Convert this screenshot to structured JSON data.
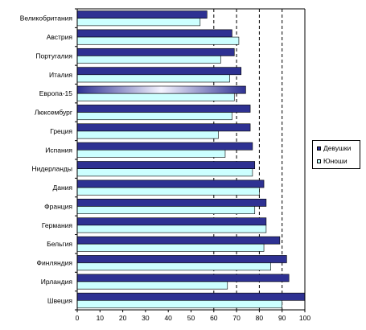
{
  "chart_data": {
    "type": "bar",
    "orientation": "horizontal",
    "categories": [
      "Великобритания",
      "Австрия",
      "Португалия",
      "Италия",
      "Европа-15",
      "Люксембург",
      "Греция",
      "Испания",
      "Нидерланды",
      "Дания",
      "Франция",
      "Германия",
      "Бельгия",
      "Финляндия",
      "Ирландия",
      "Швеция"
    ],
    "series": [
      {
        "name": "Девушки",
        "color": "#2E3192",
        "values": [
          57,
          68,
          69,
          72,
          74,
          76,
          76,
          77,
          78,
          82,
          83,
          83,
          89,
          92,
          93,
          100
        ]
      },
      {
        "name": "Юноши",
        "color": "#CCFFFF",
        "values": [
          54,
          71,
          63,
          67,
          69,
          68,
          62,
          65,
          77,
          80,
          78,
          83,
          82,
          85,
          66,
          90
        ]
      }
    ],
    "xlim": [
      0,
      100
    ],
    "xticks": [
      "0",
      "10",
      "20",
      "30",
      "40",
      "50",
      "60",
      "70",
      "80",
      "90",
      "100"
    ],
    "gridlines": [
      60,
      70,
      80,
      90
    ],
    "legend_position": "right",
    "highlight_category": "Европа-15"
  }
}
